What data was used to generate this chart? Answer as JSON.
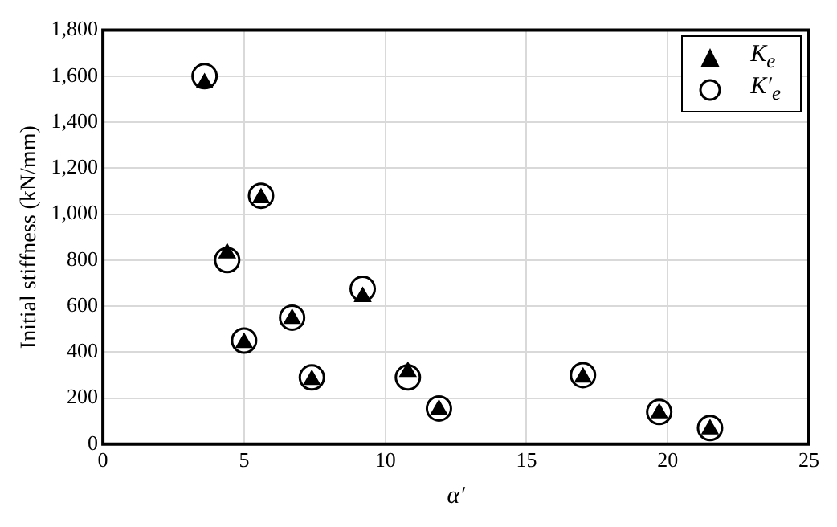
{
  "chart_data": {
    "type": "scatter",
    "xlabel": "α′",
    "ylabel": "Initial stiffness (kN/mm)",
    "x": [
      3.6,
      4.4,
      5.0,
      5.6,
      6.7,
      7.4,
      9.2,
      10.8,
      11.9,
      17.0,
      19.7,
      21.5
    ],
    "series": [
      {
        "name": "K$_{e}$",
        "color": "#000000",
        "marker": "triangle",
        "values": [
          1570,
          830,
          440,
          1070,
          545,
          280,
          640,
          315,
          150,
          290,
          135,
          65
        ]
      },
      {
        "name": "K′$_{e}$",
        "color": "#000000",
        "marker": "circle",
        "values": [
          1600,
          800,
          450,
          1080,
          550,
          290,
          675,
          290,
          155,
          300,
          140,
          70
        ]
      }
    ],
    "xlim": [
      0,
      25
    ],
    "xticks": [
      0,
      5,
      10,
      15,
      20,
      25
    ],
    "ylim": [
      0,
      1800
    ],
    "yticks": [
      0,
      {
        "value": 200,
        "label": "200"
      },
      {
        "value": 400,
        "label": "400"
      },
      {
        "value": 600,
        "label": "600"
      },
      {
        "value": 800,
        "label": "800"
      },
      {
        "value": 1000,
        "label": "1,000"
      },
      {
        "value": 1200,
        "label": "1,200"
      },
      {
        "value": 1400,
        "label": "1,400"
      },
      {
        "value": 1600,
        "label": "1,600"
      },
      {
        "value": 1800,
        "label": "1,800"
      }
    ],
    "grid": true,
    "legend": "top right"
  }
}
